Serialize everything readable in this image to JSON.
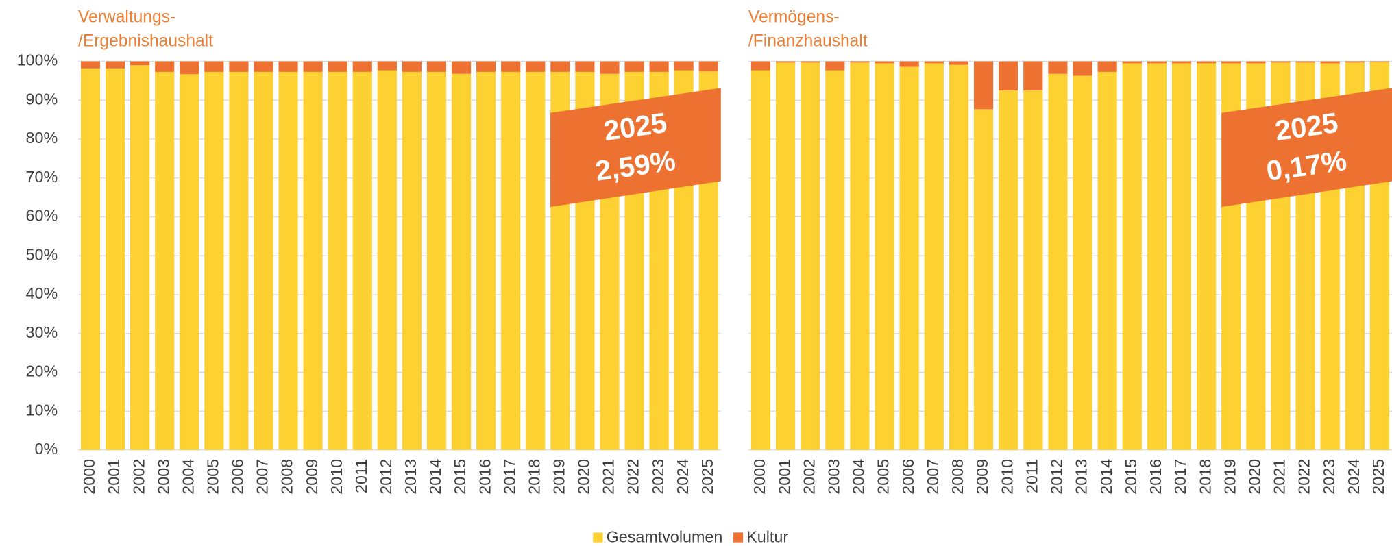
{
  "chart_data": [
    {
      "type": "stacked_bar",
      "title": [
        "Verwaltungs-",
        "/Ergebnishaushalt"
      ],
      "categories": [
        "2000",
        "2001",
        "2002",
        "2003",
        "2004",
        "2005",
        "2006",
        "2007",
        "2008",
        "2009",
        "2010",
        "2011",
        "2012",
        "2013",
        "2014",
        "2015",
        "2016",
        "2017",
        "2018",
        "2019",
        "2020",
        "2021",
        "2022",
        "2023",
        "2024",
        "2025"
      ],
      "series": [
        {
          "name": "Gesamtvolumen",
          "color": "#fdd132",
          "values": [
            98.2,
            98.2,
            99.0,
            97.3,
            96.7,
            97.3,
            97.3,
            97.3,
            97.3,
            97.3,
            97.3,
            97.3,
            97.7,
            97.3,
            97.3,
            96.8,
            97.3,
            97.3,
            97.3,
            97.3,
            97.3,
            96.8,
            97.3,
            97.3,
            97.7,
            97.41
          ]
        },
        {
          "name": "Kultur",
          "color": "#ed7131",
          "values": [
            1.8,
            1.8,
            1.0,
            2.7,
            3.3,
            2.7,
            2.7,
            2.7,
            2.7,
            2.7,
            2.7,
            2.7,
            2.3,
            2.7,
            2.7,
            3.2,
            2.7,
            2.7,
            2.7,
            2.7,
            2.7,
            3.2,
            2.7,
            2.7,
            2.3,
            2.59
          ]
        }
      ],
      "annotation": [
        "2025",
        "2,59%"
      ],
      "ylim": [
        0,
        100
      ],
      "yticks": [
        {
          "value": 0,
          "label": "0%"
        },
        {
          "value": 10,
          "label": "10%"
        },
        {
          "value": 20,
          "label": "20%"
        },
        {
          "value": 30,
          "label": "30%"
        },
        {
          "value": 40,
          "label": "40%"
        },
        {
          "value": 50,
          "label": "50%"
        },
        {
          "value": 60,
          "label": "60%"
        },
        {
          "value": 70,
          "label": "70%"
        },
        {
          "value": 80,
          "label": "80%"
        },
        {
          "value": 90,
          "label": "90%"
        },
        {
          "value": 100,
          "label": "100%"
        }
      ],
      "grid": true
    },
    {
      "type": "stacked_bar",
      "title": [
        "Vermögens-",
        "/Finanzhaushalt"
      ],
      "categories": [
        "2000",
        "2001",
        "2002",
        "2003",
        "2004",
        "2005",
        "2006",
        "2007",
        "2008",
        "2009",
        "2010",
        "2011",
        "2012",
        "2013",
        "2014",
        "2015",
        "2016",
        "2017",
        "2018",
        "2019",
        "2020",
        "2021",
        "2022",
        "2023",
        "2024",
        "2025"
      ],
      "series": [
        {
          "name": "Gesamtvolumen",
          "color": "#fdd132",
          "values": [
            97.7,
            99.7,
            99.7,
            97.7,
            99.7,
            99.5,
            98.6,
            99.5,
            99.1,
            87.7,
            92.5,
            92.5,
            96.8,
            96.3,
            97.3,
            99.5,
            99.5,
            99.5,
            99.5,
            99.5,
            99.5,
            99.7,
            99.7,
            99.5,
            99.7,
            99.83
          ]
        },
        {
          "name": "Kultur",
          "color": "#ed7131",
          "values": [
            2.3,
            0.3,
            0.3,
            2.3,
            0.3,
            0.5,
            1.4,
            0.5,
            0.9,
            12.3,
            7.5,
            7.5,
            3.2,
            3.7,
            2.7,
            0.5,
            0.5,
            0.5,
            0.5,
            0.5,
            0.5,
            0.3,
            0.3,
            0.5,
            0.3,
            0.17
          ]
        }
      ],
      "annotation": [
        "2025",
        "0,17%"
      ],
      "ylim": [
        0,
        100
      ],
      "yticks": [
        {
          "value": 0,
          "label": "0%"
        },
        {
          "value": 10,
          "label": "10%"
        },
        {
          "value": 20,
          "label": "20%"
        },
        {
          "value": 30,
          "label": "30%"
        },
        {
          "value": 40,
          "label": "40%"
        },
        {
          "value": 50,
          "label": "50%"
        },
        {
          "value": 60,
          "label": "60%"
        },
        {
          "value": 70,
          "label": "70%"
        },
        {
          "value": 80,
          "label": "80%"
        },
        {
          "value": 90,
          "label": "90%"
        },
        {
          "value": 100,
          "label": "100%"
        }
      ],
      "grid": true
    }
  ]
}
